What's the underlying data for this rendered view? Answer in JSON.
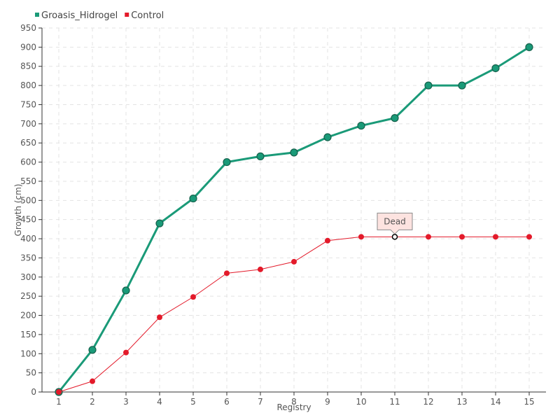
{
  "chart_data": {
    "type": "line",
    "title": "",
    "xlabel": "Registry",
    "ylabel": "Growth (cm)",
    "x": [
      "1",
      "2",
      "3",
      "4",
      "5",
      "6",
      "7",
      "8",
      "9",
      "10",
      "11",
      "12",
      "13",
      "14",
      "15"
    ],
    "ylim": [
      0,
      950
    ],
    "yticks": [
      0,
      50,
      100,
      150,
      200,
      250,
      300,
      350,
      400,
      450,
      500,
      550,
      600,
      650,
      700,
      750,
      800,
      850,
      900,
      950
    ],
    "grid": true,
    "legend_position": "top-left",
    "series": [
      {
        "name": "Groasis_Hidrogel",
        "color": "#1a9a78",
        "values": [
          0,
          110,
          265,
          440,
          505,
          600,
          615,
          625,
          665,
          695,
          715,
          800,
          800,
          845,
          900
        ]
      },
      {
        "name": "Control",
        "color": "#e31a2a",
        "values": [
          0,
          28,
          103,
          195,
          248,
          310,
          320,
          340,
          395,
          405,
          405,
          405,
          405,
          405,
          405
        ]
      }
    ],
    "annotations": [
      {
        "text": "Dead",
        "series": "Control",
        "x": "11",
        "y": 405
      }
    ]
  }
}
